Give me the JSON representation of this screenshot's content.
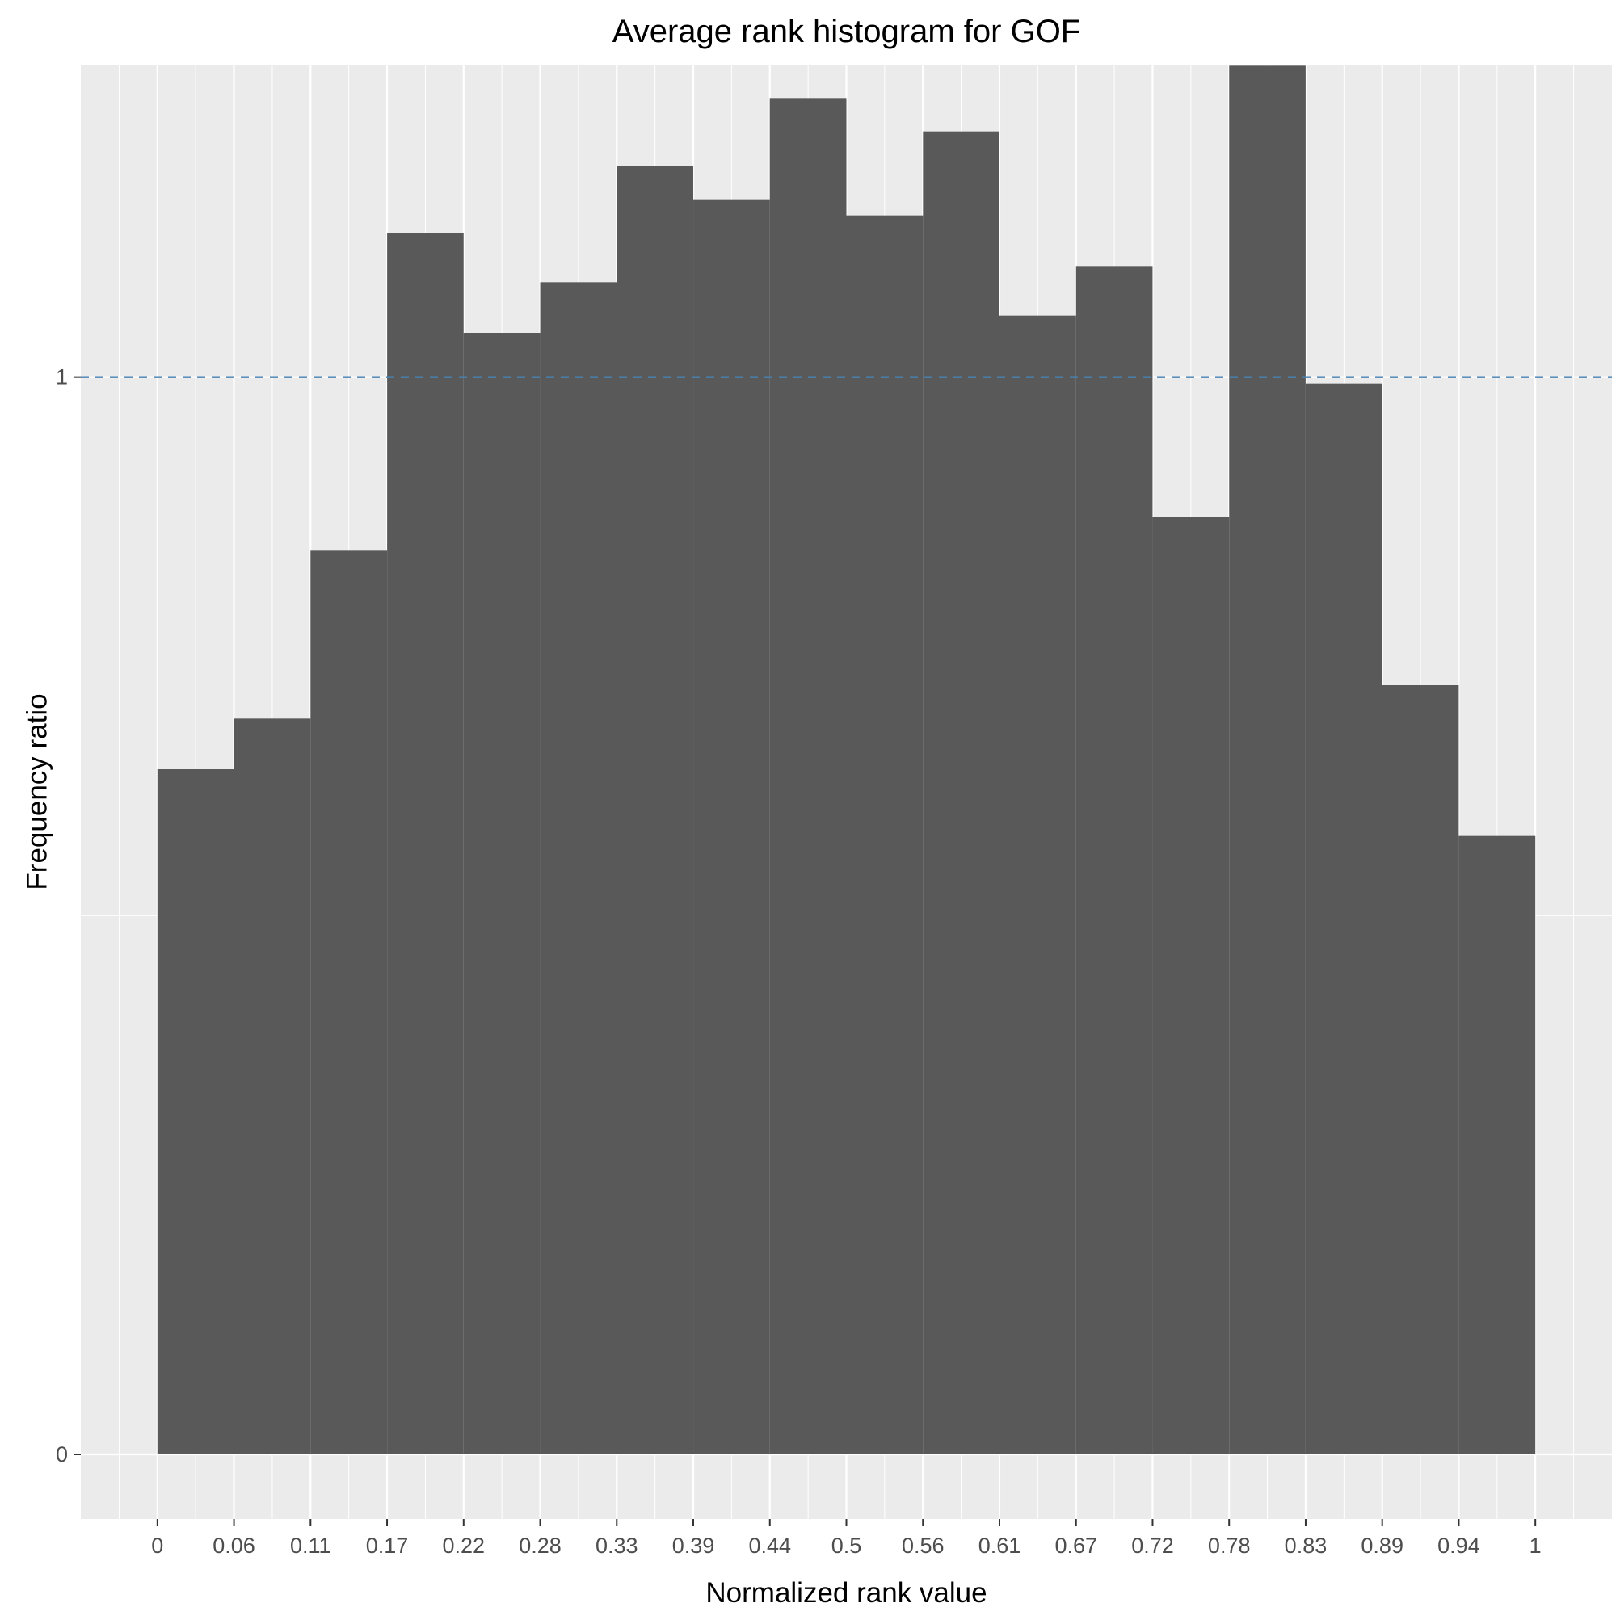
{
  "chart_data": {
    "type": "bar",
    "title": "Average rank histogram for GOF",
    "xlabel": "Normalized rank value",
    "ylabel": "Frequency ratio",
    "x_tick_labels": [
      "0",
      "0.06",
      "0.11",
      "0.17",
      "0.22",
      "0.28",
      "0.33",
      "0.39",
      "0.44",
      "0.5",
      "0.56",
      "0.61",
      "0.67",
      "0.72",
      "0.78",
      "0.83",
      "0.89",
      "0.94",
      "1"
    ],
    "y_tick_labels": [
      "0",
      "1"
    ],
    "y_ticks": [
      0,
      1
    ],
    "xlim": [
      -0.0556,
      1.0556
    ],
    "ylim": [
      -0.06,
      1.29
    ],
    "bins": [
      {
        "x_start": 0.0,
        "x_end": 0.0556,
        "value": 0.636
      },
      {
        "x_start": 0.0556,
        "x_end": 0.1111,
        "value": 0.683
      },
      {
        "x_start": 0.1111,
        "x_end": 0.1667,
        "value": 0.839
      },
      {
        "x_start": 0.1667,
        "x_end": 0.2222,
        "value": 1.134
      },
      {
        "x_start": 0.2222,
        "x_end": 0.2778,
        "value": 1.041
      },
      {
        "x_start": 0.2778,
        "x_end": 0.3333,
        "value": 1.088
      },
      {
        "x_start": 0.3333,
        "x_end": 0.3889,
        "value": 1.196
      },
      {
        "x_start": 0.3889,
        "x_end": 0.4444,
        "value": 1.165
      },
      {
        "x_start": 0.4444,
        "x_end": 0.5,
        "value": 1.259
      },
      {
        "x_start": 0.5,
        "x_end": 0.5556,
        "value": 1.15
      },
      {
        "x_start": 0.5556,
        "x_end": 0.6111,
        "value": 1.228
      },
      {
        "x_start": 0.6111,
        "x_end": 0.6667,
        "value": 1.057
      },
      {
        "x_start": 0.6667,
        "x_end": 0.7222,
        "value": 1.103
      },
      {
        "x_start": 0.7222,
        "x_end": 0.7778,
        "value": 0.87
      },
      {
        "x_start": 0.7778,
        "x_end": 0.8333,
        "value": 1.289
      },
      {
        "x_start": 0.8333,
        "x_end": 0.8889,
        "value": 0.994
      },
      {
        "x_start": 0.8889,
        "x_end": 0.9444,
        "value": 0.714
      },
      {
        "x_start": 0.9444,
        "x_end": 1.0,
        "value": 0.574
      }
    ],
    "reference_line": {
      "y": 1,
      "style": "dashed",
      "color": "#4682b4"
    },
    "bar_color": "#595959",
    "panel_color": "#ebebeb",
    "grid": true,
    "legend": "none"
  }
}
